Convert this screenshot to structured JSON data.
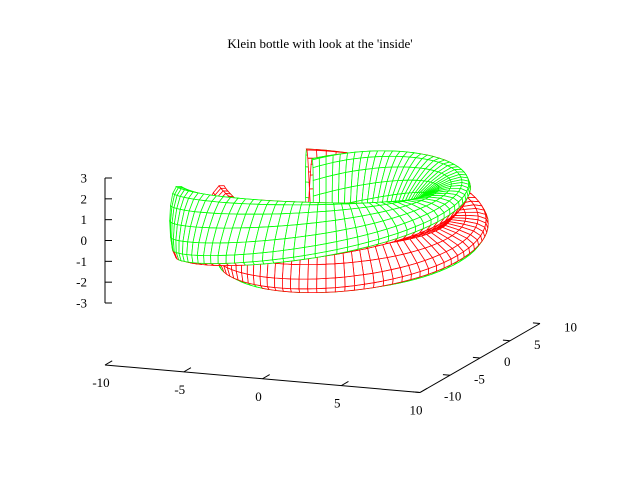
{
  "chart_data": {
    "type": "surface3d",
    "title": "Klein bottle with look at the 'inside'",
    "xlabel": "",
    "ylabel": "",
    "zlabel": "",
    "xlim": [
      -10,
      10
    ],
    "ylim": [
      -10,
      10
    ],
    "zlim": [
      -3,
      3
    ],
    "x_ticks": [
      "-10",
      "-5",
      "0",
      "5",
      "10"
    ],
    "y_ticks": [
      "-10",
      "-5",
      "0",
      "5",
      "10"
    ],
    "z_ticks": [
      "3",
      "2",
      "1",
      "0",
      "-1",
      "-2",
      "-3"
    ],
    "view": {
      "rotation_x_deg": 60,
      "rotation_z_deg": 30
    },
    "surface": {
      "name": "Klein bottle",
      "outside_color": "#ff0000",
      "inside_color": "#00ff00",
      "u_range": [
        0,
        360
      ],
      "v_range": [
        0,
        360
      ]
    },
    "grid": false,
    "legend": "none"
  }
}
